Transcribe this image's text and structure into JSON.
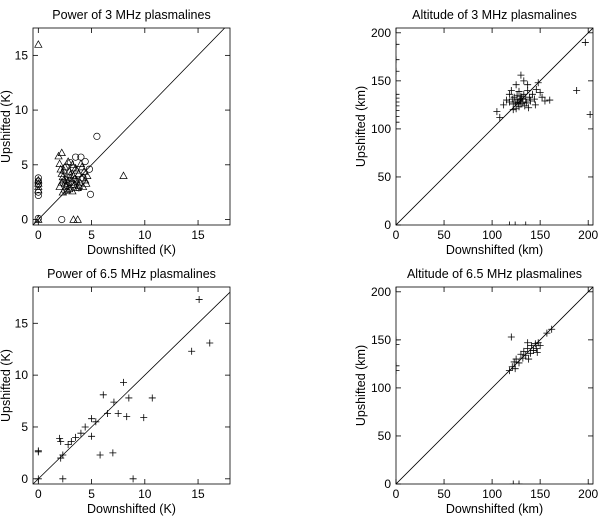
{
  "figure": {
    "background": "#ffffff",
    "ink": "#000000"
  },
  "chart_data": [
    {
      "id": "power-3mhz",
      "type": "scatter",
      "title": "Power of 3 MHz plasmalines",
      "xlabel": "Downshifted (K)",
      "ylabel": "Upshifted (K)",
      "xlim": [
        -0.5,
        18
      ],
      "ylim": [
        -0.5,
        17.5
      ],
      "xticks": [
        0,
        5,
        10,
        15
      ],
      "yticks": [
        0,
        5,
        10,
        15
      ],
      "grid": false,
      "diagonal": true,
      "series": [
        {
          "marker": "triangle",
          "points": [
            [
              0,
              16
            ],
            [
              0,
              3.6
            ],
            [
              0,
              3.3
            ],
            [
              0,
              3.0
            ],
            [
              0,
              2.7
            ],
            [
              0,
              0
            ],
            [
              1.9,
              5.8
            ],
            [
              2.0,
              5.1
            ],
            [
              2.1,
              4.6
            ],
            [
              2.2,
              4.2
            ],
            [
              2.3,
              3.9
            ],
            [
              2.4,
              3.6
            ],
            [
              2.5,
              3.3
            ],
            [
              2.6,
              3.0
            ],
            [
              2.7,
              2.7
            ],
            [
              2.2,
              6.1
            ],
            [
              2.5,
              4.8
            ],
            [
              2.8,
              5.3
            ],
            [
              2.9,
              4.4
            ],
            [
              3.0,
              3.8
            ],
            [
              3.1,
              3.4
            ],
            [
              3.2,
              5.0
            ],
            [
              3.3,
              4.0
            ],
            [
              3.4,
              3.2
            ],
            [
              3.5,
              4.7
            ],
            [
              3.6,
              3.6
            ],
            [
              3.7,
              2.9
            ],
            [
              3.8,
              4.2
            ],
            [
              3.9,
              3.4
            ],
            [
              4.0,
              5.1
            ],
            [
              4.1,
              3.8
            ],
            [
              4.2,
              3.0
            ],
            [
              4.3,
              4.4
            ],
            [
              4.4,
              3.6
            ],
            [
              4.6,
              4.0
            ],
            [
              2.0,
              3.0
            ],
            [
              2.3,
              2.5
            ],
            [
              2.6,
              3.7
            ],
            [
              2.9,
              2.8
            ],
            [
              3.2,
              2.6
            ],
            [
              3.5,
              2.9
            ],
            [
              3.8,
              3.1
            ],
            [
              3.3,
              0
            ],
            [
              3.7,
              0
            ],
            [
              8.0,
              4.0
            ],
            [
              2.4,
              4.5
            ],
            [
              3.0,
              4.1
            ],
            [
              3.6,
              4.5
            ],
            [
              4.1,
              4.8
            ],
            [
              2.8,
              3.5
            ],
            [
              2.2,
              3.4
            ],
            [
              3.4,
              3.7
            ],
            [
              4.5,
              3.3
            ]
          ]
        },
        {
          "marker": "circle",
          "points": [
            [
              0,
              3.8
            ],
            [
              0,
              3.5
            ],
            [
              0,
              3.2
            ],
            [
              0,
              2.5
            ],
            [
              0,
              2.2
            ],
            [
              0,
              0.1
            ],
            [
              2.2,
              0
            ],
            [
              5.5,
              7.6
            ],
            [
              4.0,
              5.7
            ],
            [
              3.5,
              5.7
            ],
            [
              4.4,
              5.3
            ],
            [
              3.0,
              5.2
            ],
            [
              4.8,
              4.6
            ],
            [
              2.6,
              4.8
            ],
            [
              4.9,
              2.3
            ],
            [
              2.5,
              2.6
            ],
            [
              3.8,
              2.9
            ],
            [
              2.7,
              3.1
            ],
            [
              4.2,
              3.8
            ],
            [
              3.3,
              4.7
            ]
          ]
        }
      ]
    },
    {
      "id": "altitude-3mhz",
      "type": "scatter",
      "title": "Altitude of 3 MHz plasmalines",
      "xlabel": "Downshifted (km)",
      "ylabel": "Upshifted (km)",
      "xlim": [
        0,
        205
      ],
      "ylim": [
        0,
        205
      ],
      "xticks": [
        0,
        50,
        100,
        150,
        200
      ],
      "yticks": [
        0,
        50,
        100,
        150,
        200
      ],
      "grid": false,
      "diagonal": true,
      "series": [
        {
          "marker": "plus",
          "points": [
            [
              0,
              188
            ],
            [
              0,
              172
            ],
            [
              0,
              160
            ],
            [
              0,
              136
            ],
            [
              0,
              132
            ],
            [
              0,
              128
            ],
            [
              0,
              124
            ],
            [
              0,
              119
            ],
            [
              0,
              113
            ],
            [
              0,
              107
            ],
            [
              0,
              0
            ],
            [
              105,
              118
            ],
            [
              108,
              112
            ],
            [
              112,
              125
            ],
            [
              115,
              130
            ],
            [
              118,
              128
            ],
            [
              118,
              136
            ],
            [
              120,
              140
            ],
            [
              121,
              131
            ],
            [
              122,
              126
            ],
            [
              123,
              133
            ],
            [
              124,
              128
            ],
            [
              125,
              121
            ],
            [
              126,
              135
            ],
            [
              126,
              131
            ],
            [
              127,
              127
            ],
            [
              128,
              139
            ],
            [
              128,
              123
            ],
            [
              129,
              130
            ],
            [
              130,
              134
            ],
            [
              130,
              126
            ],
            [
              131,
              132
            ],
            [
              132,
              128
            ],
            [
              133,
              150
            ],
            [
              133,
              136
            ],
            [
              134,
              124
            ],
            [
              135,
              131
            ],
            [
              136,
              127
            ],
            [
              137,
              140
            ],
            [
              138,
              122
            ],
            [
              139,
              133
            ],
            [
              140,
              129
            ],
            [
              142,
              136
            ],
            [
              144,
              131
            ],
            [
              146,
              141
            ],
            [
              148,
              148
            ],
            [
              150,
              138
            ],
            [
              152,
              133
            ],
            [
              155,
              129
            ],
            [
              130,
              156
            ],
            [
              125,
              146
            ],
            [
              122,
              120
            ],
            [
              145,
              125
            ],
            [
              160,
              130
            ],
            [
              137,
              146
            ],
            [
              188,
              140
            ],
            [
              197,
              190
            ],
            [
              202,
              115
            ],
            [
              118,
              0
            ],
            [
              124,
              0
            ],
            [
              135,
              0
            ]
          ]
        }
      ]
    },
    {
      "id": "power-6-5mhz",
      "type": "scatter",
      "title": "Power of 6.5 MHz plasmalines",
      "xlabel": "Downshifted (K)",
      "ylabel": "Upshifted (K)",
      "xlim": [
        -0.5,
        18
      ],
      "ylim": [
        -0.5,
        18.5
      ],
      "xticks": [
        0,
        5,
        10,
        15
      ],
      "yticks": [
        0,
        5,
        10,
        15
      ],
      "grid": false,
      "diagonal": true,
      "series": [
        {
          "marker": "plus",
          "points": [
            [
              15.1,
              17.3
            ],
            [
              16.1,
              13.1
            ],
            [
              14.4,
              12.3
            ],
            [
              8.0,
              9.3
            ],
            [
              8.5,
              7.8
            ],
            [
              10.7,
              7.8
            ],
            [
              6.1,
              8.1
            ],
            [
              7.1,
              7.4
            ],
            [
              7.5,
              6.3
            ],
            [
              8.3,
              6.0
            ],
            [
              9.9,
              5.9
            ],
            [
              6.5,
              6.3
            ],
            [
              5.0,
              5.8
            ],
            [
              5.4,
              5.5
            ],
            [
              4.4,
              5.0
            ],
            [
              4.0,
              4.4
            ],
            [
              3.5,
              4.0
            ],
            [
              3.1,
              3.6
            ],
            [
              2.8,
              3.3
            ],
            [
              2.3,
              2.3
            ],
            [
              2.0,
              3.9
            ],
            [
              2.1,
              3.6
            ],
            [
              2.1,
              2.0
            ],
            [
              5.0,
              4.1
            ],
            [
              5.8,
              2.3
            ],
            [
              7.0,
              2.5
            ],
            [
              8.9,
              0
            ],
            [
              2.3,
              0
            ],
            [
              0,
              2.7
            ],
            [
              0,
              2.6
            ],
            [
              0,
              0
            ]
          ]
        }
      ]
    },
    {
      "id": "altitude-6-5mhz",
      "type": "scatter",
      "title": "Altitude of 6.5 MHz plasmalines",
      "xlabel": "Downshifted (km)",
      "ylabel": "Upshifted (km)",
      "xlim": [
        0,
        205
      ],
      "ylim": [
        0,
        205
      ],
      "xticks": [
        0,
        50,
        100,
        150,
        200
      ],
      "yticks": [
        0,
        50,
        100,
        150,
        200
      ],
      "grid": false,
      "diagonal": true,
      "series": [
        {
          "marker": "plus",
          "points": [
            [
              0,
              150
            ],
            [
              0,
              145
            ],
            [
              0,
              123
            ],
            [
              0,
              118
            ],
            [
              0,
              0
            ],
            [
              120,
              153
            ],
            [
              118,
              118
            ],
            [
              121,
              122
            ],
            [
              123,
              127
            ],
            [
              124,
              120
            ],
            [
              125,
              130
            ],
            [
              128,
              126
            ],
            [
              130,
              135
            ],
            [
              132,
              131
            ],
            [
              133,
              138
            ],
            [
              135,
              134
            ],
            [
              137,
              141
            ],
            [
              138,
              130
            ],
            [
              140,
              136
            ],
            [
              141,
              144
            ],
            [
              143,
              139
            ],
            [
              145,
              146
            ],
            [
              146,
              141
            ],
            [
              148,
              147
            ],
            [
              150,
              144
            ],
            [
              147,
              137
            ],
            [
              137,
              147
            ],
            [
              157,
              157
            ],
            [
              162,
              161
            ],
            [
              128,
              0
            ],
            [
              122,
              0
            ]
          ]
        }
      ]
    }
  ]
}
